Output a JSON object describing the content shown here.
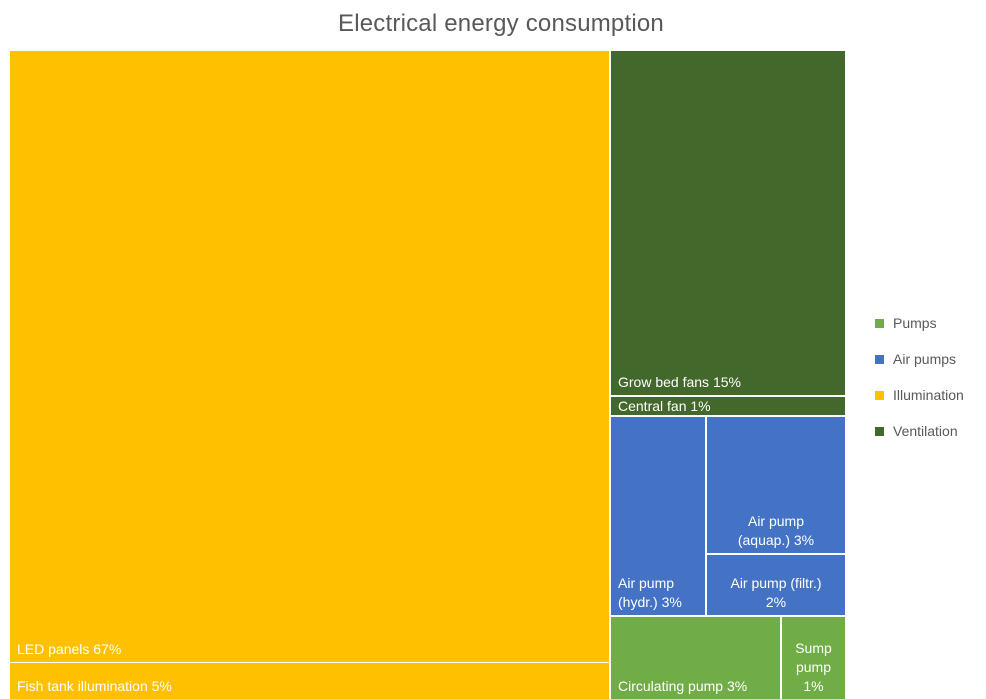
{
  "chart_data": {
    "type": "treemap",
    "title": "Electrical energy consumption",
    "categories": [
      {
        "name": "Pumps",
        "color": "#70ad47"
      },
      {
        "name": "Air pumps",
        "color": "#4472c4"
      },
      {
        "name": "Illumination",
        "color": "#ffc000"
      },
      {
        "name": "Ventilation",
        "color": "#43682b"
      }
    ],
    "items": [
      {
        "label": "LED panels 67%",
        "category": "Illumination",
        "value": 67
      },
      {
        "label": "Fish tank illumination 5%",
        "category": "Illumination",
        "value": 5
      },
      {
        "label": "Grow bed fans 15%",
        "category": "Ventilation",
        "value": 15
      },
      {
        "label": "Central fan 1%",
        "category": "Ventilation",
        "value": 1
      },
      {
        "label": "Air pump\n(aquap.) 3%",
        "category": "Air pumps",
        "value": 3
      },
      {
        "label": "Air pump (filtr.)\n2%",
        "category": "Air pumps",
        "value": 2
      },
      {
        "label": "Air pump\n(hydr.) 3%",
        "category": "Air pumps",
        "value": 3
      },
      {
        "label": "Circulating pump 3%",
        "category": "Pumps",
        "value": 3
      },
      {
        "label": "Sump\npump\n1%",
        "category": "Pumps",
        "value": 1
      }
    ],
    "legend_position": "right"
  }
}
